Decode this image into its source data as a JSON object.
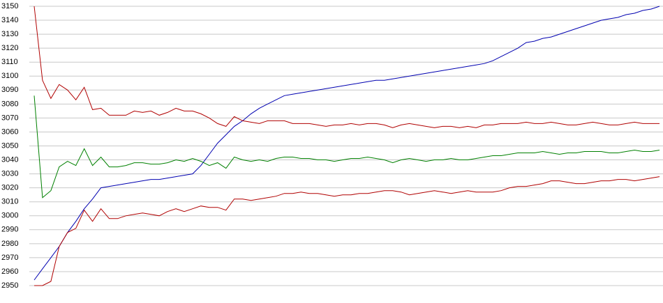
{
  "chart_data": {
    "type": "line",
    "ylim": [
      2950,
      3150
    ],
    "yticks": [
      2950,
      2960,
      2970,
      2980,
      2990,
      3000,
      3010,
      3020,
      3030,
      3040,
      3050,
      3060,
      3070,
      3080,
      3090,
      3100,
      3110,
      3120,
      3130,
      3140,
      3150
    ],
    "grid": true,
    "series": [
      {
        "color": "#0000b0",
        "values": [
          2954,
          2962,
          2970,
          2978,
          2988,
          2996,
          3005,
          3012,
          3020,
          3021,
          3022,
          3023,
          3024,
          3025,
          3026,
          3026,
          3027,
          3028,
          3029,
          3030,
          3036,
          3044,
          3052,
          3058,
          3064,
          3068,
          3073,
          3077,
          3080,
          3083,
          3086,
          3087,
          3088,
          3089,
          3090,
          3091,
          3092,
          3093,
          3094,
          3095,
          3096,
          3097,
          3097,
          3098,
          3099,
          3100,
          3101,
          3102,
          3103,
          3104,
          3105,
          3106,
          3107,
          3108,
          3109,
          3111,
          3114,
          3117,
          3120,
          3124,
          3125,
          3127,
          3128,
          3130,
          3132,
          3134,
          3136,
          3138,
          3140,
          3141,
          3142,
          3144,
          3145,
          3147,
          3148,
          3150
        ]
      },
      {
        "color": "#b00000",
        "values": [
          3150,
          3097,
          3084,
          3094,
          3090,
          3083,
          3092,
          3076,
          3077,
          3072,
          3072,
          3072,
          3075,
          3074,
          3075,
          3072,
          3074,
          3077,
          3075,
          3075,
          3073,
          3070,
          3066,
          3064,
          3071,
          3068,
          3067,
          3066,
          3068,
          3068,
          3068,
          3066,
          3066,
          3066,
          3065,
          3064,
          3065,
          3065,
          3066,
          3065,
          3066,
          3066,
          3065,
          3063,
          3065,
          3066,
          3065,
          3064,
          3063,
          3064,
          3064,
          3063,
          3064,
          3063,
          3065,
          3065,
          3066,
          3066,
          3066,
          3067,
          3066,
          3066,
          3067,
          3066,
          3065,
          3065,
          3066,
          3067,
          3066,
          3065,
          3065,
          3066,
          3067,
          3066,
          3066,
          3066
        ]
      },
      {
        "color": "#008000",
        "values": [
          3086,
          3013,
          3018,
          3035,
          3039,
          3036,
          3048,
          3036,
          3042,
          3035,
          3035,
          3036,
          3038,
          3038,
          3037,
          3037,
          3038,
          3040,
          3039,
          3041,
          3039,
          3036,
          3038,
          3034,
          3042,
          3040,
          3039,
          3040,
          3039,
          3041,
          3042,
          3042,
          3041,
          3041,
          3040,
          3040,
          3039,
          3040,
          3041,
          3041,
          3042,
          3041,
          3040,
          3038,
          3040,
          3041,
          3040,
          3039,
          3040,
          3040,
          3041,
          3040,
          3040,
          3041,
          3042,
          3043,
          3043,
          3044,
          3045,
          3045,
          3045,
          3046,
          3045,
          3044,
          3045,
          3045,
          3046,
          3046,
          3046,
          3045,
          3045,
          3046,
          3047,
          3046,
          3046,
          3047
        ]
      },
      {
        "color": "#b00000",
        "values": [
          2950,
          2950,
          2953,
          2978,
          2988,
          2991,
          3004,
          2996,
          3005,
          2998,
          2998,
          3000,
          3001,
          3002,
          3001,
          3000,
          3003,
          3005,
          3003,
          3005,
          3007,
          3006,
          3006,
          3004,
          3012,
          3012,
          3011,
          3012,
          3013,
          3014,
          3016,
          3016,
          3017,
          3016,
          3016,
          3015,
          3014,
          3015,
          3015,
          3016,
          3016,
          3017,
          3018,
          3018,
          3017,
          3015,
          3016,
          3017,
          3018,
          3017,
          3016,
          3017,
          3018,
          3017,
          3017,
          3017,
          3018,
          3020,
          3021,
          3021,
          3022,
          3023,
          3025,
          3025,
          3024,
          3023,
          3023,
          3024,
          3025,
          3025,
          3026,
          3026,
          3025,
          3026,
          3027,
          3028
        ]
      }
    ]
  }
}
